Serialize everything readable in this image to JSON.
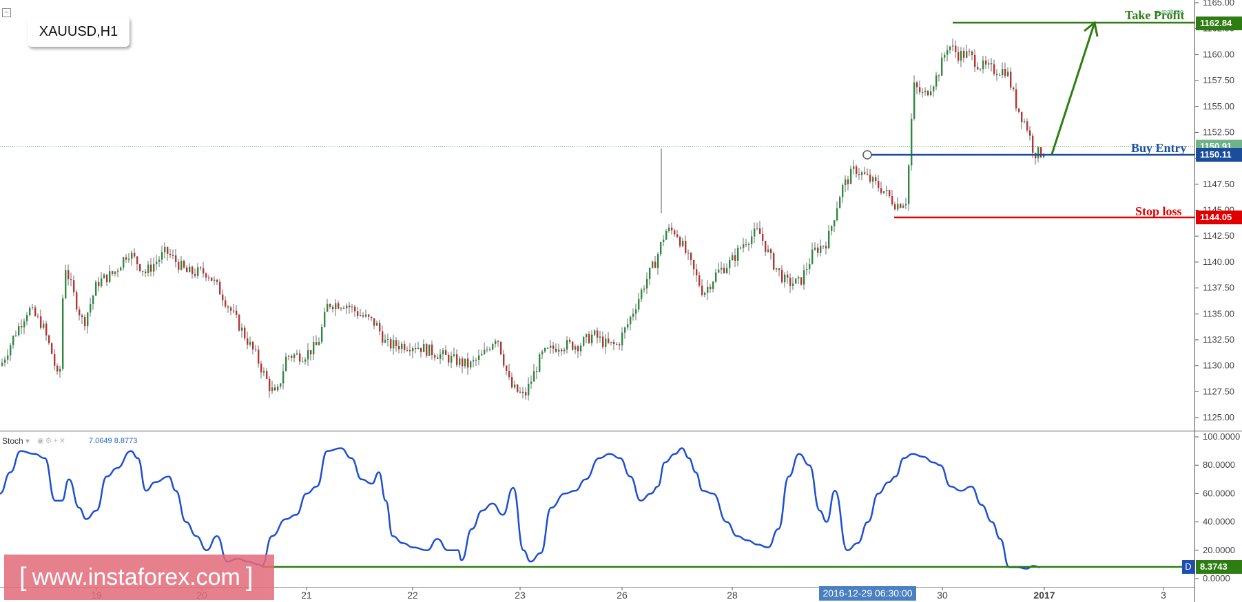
{
  "symbol": "XAUUSD,H1",
  "realtime_label": "realtime",
  "price_axis_ticks": [
    "1165.00",
    "1162.50",
    "1160.00",
    "1157.50",
    "1155.00",
    "1152.50",
    "1150.00",
    "1147.50",
    "1145.00",
    "1142.50",
    "1140.00",
    "1137.50",
    "1135.00",
    "1132.50",
    "1130.00",
    "1127.50",
    "1125.00"
  ],
  "stoch_axis_ticks": [
    "100.0000",
    "80.0000",
    "60.0000",
    "40.0000",
    "20.0000",
    "0.0000"
  ],
  "time_axis_ticks": [
    "19",
    "20",
    "21",
    "22",
    "23",
    "26",
    "28",
    "29",
    "30",
    "2017",
    "3"
  ],
  "crosshair_time": "2016-12-29 06:30:00",
  "levels": {
    "take_profit": {
      "label": "Take Profit",
      "price": "1162.84",
      "color": "#2e7d12"
    },
    "buy_entry": {
      "label": "Buy Entry",
      "price": "1150.11",
      "color": "#1a4e9a"
    },
    "stop_loss": {
      "label": "Stop loss",
      "price": "1144.05",
      "color": "#e00000"
    },
    "current_price": {
      "price": "1150.91",
      "color": "#6fb38a"
    }
  },
  "stoch": {
    "label": "Stoch",
    "value_k": "7.0649",
    "value_d": "8.8773",
    "d_tag": "D",
    "d_value": "8.3743"
  },
  "watermark": {
    "open": "[",
    "text": "www.instaforex.com",
    "close": "]"
  },
  "chart_data": {
    "type": "candlestick",
    "title": "XAUUSD,H1",
    "ylim": [
      1124,
      1166
    ],
    "price_path": [
      [
        0,
        1130
      ],
      [
        20,
        1133
      ],
      [
        40,
        1135.5
      ],
      [
        60,
        1134
      ],
      [
        75,
        1131
      ],
      [
        85,
        1128
      ],
      [
        92,
        1140
      ],
      [
        105,
        1137
      ],
      [
        120,
        1134
      ],
      [
        140,
        1138
      ],
      [
        165,
        1139
      ],
      [
        185,
        1141
      ],
      [
        210,
        1139
      ],
      [
        240,
        1141
      ],
      [
        270,
        1139
      ],
      [
        300,
        1139
      ],
      [
        320,
        1137
      ],
      [
        345,
        1134
      ],
      [
        370,
        1131
      ],
      [
        390,
        1128
      ],
      [
        400,
        1127
      ],
      [
        415,
        1131
      ],
      [
        440,
        1131
      ],
      [
        460,
        1132
      ],
      [
        475,
        1136
      ],
      [
        500,
        1136
      ],
      [
        520,
        1135
      ],
      [
        545,
        1134
      ],
      [
        560,
        1132
      ],
      [
        600,
        1132
      ],
      [
        640,
        1131
      ],
      [
        680,
        1130
      ],
      [
        700,
        1131
      ],
      [
        720,
        1133
      ],
      [
        740,
        1128
      ],
      [
        760,
        1127
      ],
      [
        785,
        1131
      ],
      [
        810,
        1132
      ],
      [
        840,
        1132
      ],
      [
        860,
        1133
      ],
      [
        880,
        1132
      ],
      [
        895,
        1132
      ],
      [
        910,
        1134
      ],
      [
        935,
        1138
      ],
      [
        950,
        1140
      ],
      [
        965,
        1143
      ],
      [
        980,
        1143
      ],
      [
        1000,
        1140
      ],
      [
        1020,
        1137
      ],
      [
        1040,
        1139
      ],
      [
        1060,
        1140
      ],
      [
        1080,
        1142
      ],
      [
        1100,
        1143
      ],
      [
        1120,
        1140
      ],
      [
        1140,
        1138
      ],
      [
        1160,
        1138
      ],
      [
        1180,
        1141
      ],
      [
        1200,
        1142
      ],
      [
        1220,
        1147
      ],
      [
        1240,
        1149
      ],
      [
        1260,
        1148
      ],
      [
        1280,
        1147
      ],
      [
        1300,
        1145.5
      ],
      [
        1315,
        1146
      ],
      [
        1325,
        1157
      ],
      [
        1340,
        1156
      ],
      [
        1360,
        1158
      ],
      [
        1375,
        1161
      ],
      [
        1390,
        1160
      ],
      [
        1405,
        1160
      ],
      [
        1420,
        1159
      ],
      [
        1440,
        1158.5
      ],
      [
        1460,
        1158.5
      ],
      [
        1475,
        1155
      ],
      [
        1490,
        1153
      ],
      [
        1500,
        1150.5
      ],
      [
        1510,
        1150.5
      ],
      [
        1515,
        1150.9
      ]
    ],
    "stoch_k": [
      [
        0,
        60
      ],
      [
        15,
        75
      ],
      [
        30,
        90
      ],
      [
        50,
        88
      ],
      [
        65,
        85
      ],
      [
        80,
        55
      ],
      [
        90,
        55
      ],
      [
        100,
        70
      ],
      [
        115,
        50
      ],
      [
        125,
        42
      ],
      [
        140,
        48
      ],
      [
        155,
        72
      ],
      [
        170,
        78
      ],
      [
        190,
        90
      ],
      [
        200,
        85
      ],
      [
        212,
        62
      ],
      [
        225,
        68
      ],
      [
        245,
        72
      ],
      [
        255,
        62
      ],
      [
        270,
        40
      ],
      [
        285,
        30
      ],
      [
        300,
        20
      ],
      [
        315,
        30
      ],
      [
        330,
        12
      ],
      [
        345,
        14
      ],
      [
        360,
        12
      ],
      [
        375,
        10
      ],
      [
        380,
        9
      ],
      [
        395,
        30
      ],
      [
        415,
        42
      ],
      [
        430,
        45
      ],
      [
        445,
        60
      ],
      [
        460,
        65
      ],
      [
        475,
        90
      ],
      [
        495,
        92
      ],
      [
        510,
        85
      ],
      [
        525,
        70
      ],
      [
        540,
        67
      ],
      [
        550,
        75
      ],
      [
        560,
        55
      ],
      [
        570,
        30
      ],
      [
        585,
        25
      ],
      [
        600,
        22
      ],
      [
        620,
        20
      ],
      [
        635,
        28
      ],
      [
        650,
        20
      ],
      [
        665,
        20
      ],
      [
        670,
        13
      ],
      [
        685,
        35
      ],
      [
        700,
        48
      ],
      [
        715,
        53
      ],
      [
        730,
        45
      ],
      [
        745,
        64
      ],
      [
        760,
        20
      ],
      [
        770,
        12
      ],
      [
        785,
        18
      ],
      [
        800,
        50
      ],
      [
        820,
        60
      ],
      [
        835,
        62
      ],
      [
        850,
        70
      ],
      [
        870,
        85
      ],
      [
        885,
        88
      ],
      [
        900,
        85
      ],
      [
        915,
        72
      ],
      [
        930,
        55
      ],
      [
        945,
        60
      ],
      [
        955,
        65
      ],
      [
        965,
        82
      ],
      [
        980,
        88
      ],
      [
        990,
        92
      ],
      [
        1000,
        85
      ],
      [
        1010,
        75
      ],
      [
        1020,
        62
      ],
      [
        1035,
        60
      ],
      [
        1055,
        40
      ],
      [
        1070,
        30
      ],
      [
        1085,
        27
      ],
      [
        1100,
        24
      ],
      [
        1115,
        22
      ],
      [
        1130,
        35
      ],
      [
        1145,
        72
      ],
      [
        1160,
        88
      ],
      [
        1175,
        80
      ],
      [
        1190,
        48
      ],
      [
        1200,
        40
      ],
      [
        1212,
        62
      ],
      [
        1230,
        20
      ],
      [
        1245,
        25
      ],
      [
        1260,
        40
      ],
      [
        1275,
        60
      ],
      [
        1290,
        68
      ],
      [
        1300,
        72
      ],
      [
        1312,
        85
      ],
      [
        1325,
        88
      ],
      [
        1340,
        86
      ],
      [
        1355,
        82
      ],
      [
        1365,
        80
      ],
      [
        1380,
        65
      ],
      [
        1395,
        62
      ],
      [
        1410,
        65
      ],
      [
        1425,
        52
      ],
      [
        1440,
        40
      ],
      [
        1452,
        28
      ],
      [
        1465,
        8
      ],
      [
        1478,
        8
      ],
      [
        1490,
        7
      ],
      [
        1500,
        9
      ],
      [
        1510,
        8
      ]
    ]
  }
}
